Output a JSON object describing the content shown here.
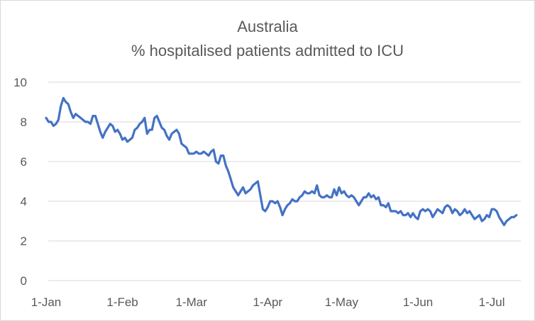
{
  "chart_data": {
    "type": "line",
    "title": "Australia",
    "subtitle": "% hospitalised patients admitted to ICU",
    "xlabel": "",
    "ylabel": "",
    "ylim": [
      0,
      10
    ],
    "yticks": [
      "0",
      "2",
      "4",
      "6",
      "8",
      "10"
    ],
    "xticks": [
      {
        "label": "1-Jan",
        "day": 0
      },
      {
        "label": "1-Feb",
        "day": 31
      },
      {
        "label": "1-Mar",
        "day": 59
      },
      {
        "label": "1-Apr",
        "day": 90
      },
      {
        "label": "1-May",
        "day": 120
      },
      {
        "label": "1-Jun",
        "day": 151
      },
      {
        "label": "1-Jul",
        "day": 181
      }
    ],
    "xlim": [
      0,
      193
    ],
    "grid": true,
    "legend": "none",
    "line_color": "#4472c4",
    "series": [
      {
        "values": [
          8.2,
          8.0,
          8.0,
          7.8,
          7.9,
          8.1,
          8.8,
          9.2,
          9.0,
          8.9,
          8.5,
          8.2,
          8.4,
          8.3,
          8.2,
          8.1,
          8.0,
          8.0,
          7.9,
          8.3,
          8.3,
          7.9,
          7.5,
          7.2,
          7.5,
          7.7,
          7.9,
          7.8,
          7.5,
          7.6,
          7.4,
          7.1,
          7.2,
          7.0,
          7.1,
          7.2,
          7.6,
          7.7,
          7.9,
          8.0,
          8.2,
          7.4,
          7.6,
          7.6,
          8.2,
          8.3,
          8.0,
          7.7,
          7.6,
          7.3,
          7.1,
          7.4,
          7.5,
          7.6,
          7.4,
          6.9,
          6.8,
          6.7,
          6.4,
          6.4,
          6.4,
          6.5,
          6.4,
          6.4,
          6.5,
          6.4,
          6.3,
          6.5,
          6.6,
          6.0,
          5.9,
          6.3,
          6.3,
          5.8,
          5.5,
          5.1,
          4.7,
          4.5,
          4.3,
          4.5,
          4.7,
          4.4,
          4.5,
          4.6,
          4.8,
          4.9,
          5.0,
          4.3,
          3.6,
          3.5,
          3.7,
          4.0,
          4.0,
          3.9,
          4.0,
          3.7,
          3.3,
          3.6,
          3.8,
          3.9,
          4.1,
          4.0,
          4.0,
          4.2,
          4.3,
          4.5,
          4.4,
          4.4,
          4.5,
          4.4,
          4.8,
          4.3,
          4.2,
          4.2,
          4.3,
          4.2,
          4.2,
          4.6,
          4.3,
          4.7,
          4.4,
          4.5,
          4.3,
          4.2,
          4.3,
          4.2,
          4.0,
          3.8,
          4.0,
          4.2,
          4.2,
          4.4,
          4.2,
          4.3,
          4.1,
          4.2,
          3.8,
          3.8,
          3.7,
          3.9,
          3.5,
          3.5,
          3.5,
          3.4,
          3.5,
          3.3,
          3.3,
          3.4,
          3.2,
          3.4,
          3.2,
          3.1,
          3.5,
          3.6,
          3.5,
          3.6,
          3.5,
          3.2,
          3.4,
          3.6,
          3.5,
          3.4,
          3.7,
          3.8,
          3.7,
          3.4,
          3.6,
          3.5,
          3.3,
          3.4,
          3.6,
          3.4,
          3.5,
          3.3,
          3.1,
          3.2,
          3.3,
          3.0,
          3.1,
          3.3,
          3.2,
          3.6,
          3.6,
          3.5,
          3.2,
          3.0,
          2.8,
          3.0,
          3.1,
          3.2,
          3.2,
          3.3
        ]
      }
    ]
  }
}
